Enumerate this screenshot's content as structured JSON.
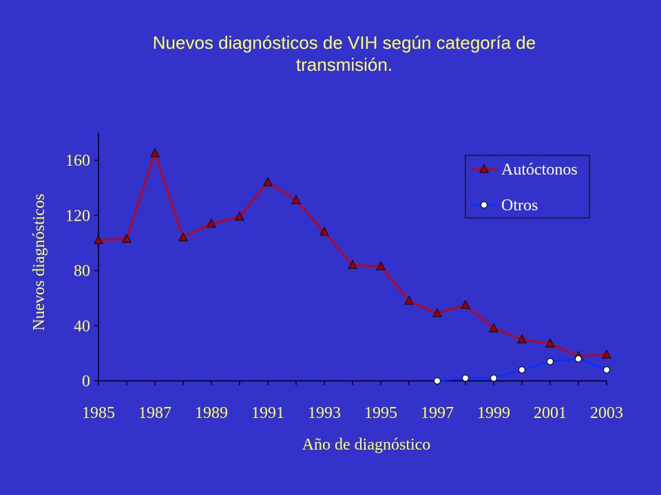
{
  "title": "Nuevos diagnósticos de VIH según categoría de\ntransmisión.",
  "colors": {
    "background": "#3333cc",
    "text": "#ffff66",
    "axis": "#000000",
    "autoctonos_line": "#cc0000",
    "autoctonos_marker": "#990000",
    "otros_line": "#0033ff",
    "otros_marker": "#ffffff"
  },
  "chart_data": {
    "type": "line",
    "title": "Nuevos diagnósticos de VIH según categoría de transmisión.",
    "xlabel": "Año de diagnóstico",
    "ylabel": "Nuevos diagnósticos",
    "xlim": [
      1985,
      2003
    ],
    "ylim": [
      0,
      180
    ],
    "yticks": [
      0,
      40,
      80,
      120,
      160
    ],
    "xticks": [
      1985,
      1987,
      1989,
      1991,
      1993,
      1995,
      1997,
      1999,
      2001,
      2003
    ],
    "xtick_labels": [
      "1985",
      "1987",
      "1989",
      "1991",
      "1993",
      "1995",
      "1997",
      "1999",
      "2001",
      "2003"
    ],
    "ytick_labels": [
      "0",
      "40",
      "80",
      "120",
      "160"
    ],
    "grid": false,
    "legend": "top-right",
    "series": [
      {
        "name": "Autóctonos",
        "marker": "triangle",
        "x": [
          1985,
          1986,
          1987,
          1988,
          1989,
          1990,
          1991,
          1992,
          1993,
          1994,
          1995,
          1996,
          1997,
          1998,
          1999,
          2000,
          2001,
          2002,
          2003
        ],
        "values": [
          102,
          103,
          165,
          104,
          114,
          119,
          144,
          131,
          108,
          84,
          83,
          58,
          49,
          55,
          38,
          30,
          27,
          18,
          19
        ]
      },
      {
        "name": "Otros",
        "marker": "circle",
        "x": [
          1997,
          1998,
          1999,
          2000,
          2001,
          2002,
          2003
        ],
        "values": [
          0,
          2,
          2,
          8,
          14,
          16,
          8
        ]
      }
    ]
  }
}
